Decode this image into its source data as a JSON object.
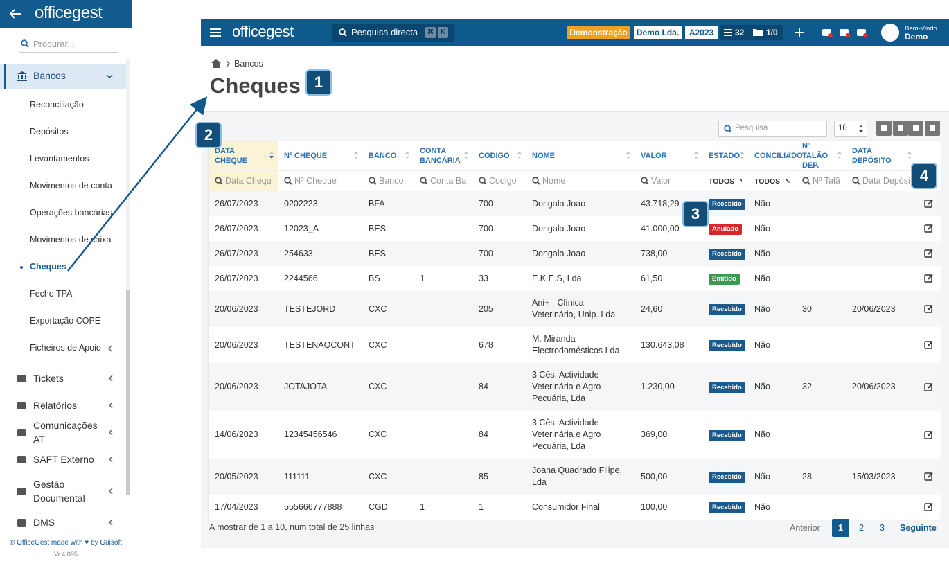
{
  "sidebar": {
    "logo": "officegest",
    "search_placeholder": "Procurar...",
    "menu": [
      {
        "label": "Bancos",
        "active": true,
        "children": [
          {
            "label": "Reconciliação"
          },
          {
            "label": "Depósitos"
          },
          {
            "label": "Levantamentos"
          },
          {
            "label": "Movimentos de conta"
          },
          {
            "label": "Operações bancárias"
          },
          {
            "label": "Movimentos de caixa"
          },
          {
            "label": "Cheques",
            "active": true
          },
          {
            "label": "Fecho TPA"
          },
          {
            "label": "Exportação COPE"
          },
          {
            "label": "Ficheiros de Apoio"
          }
        ]
      },
      {
        "label": "Tickets"
      },
      {
        "label": "Relatórios"
      },
      {
        "label": "Comunicações AT"
      },
      {
        "label": "SAFT Externo"
      },
      {
        "label": "Gestão Documental"
      },
      {
        "label": "DMS"
      }
    ],
    "footer": [
      "© OfficeGest made with ♥ by Guisoft",
      "Vr 4.095"
    ]
  },
  "topbar": {
    "logo": "officegest",
    "search": "Pesquisa directa",
    "shortcut": [
      "⌘",
      "K"
    ],
    "badges": [
      "Demonstração",
      "Demo Lda.",
      "A2023"
    ],
    "counters": [
      "32",
      "1/0"
    ],
    "user": {
      "greeting": "Bem-Vindo",
      "name": "Demo"
    }
  },
  "breadcrumb": [
    "Bancos"
  ],
  "title": "Cheques",
  "callouts": [
    "1",
    "2",
    "3",
    "4"
  ],
  "toolbar": {
    "search_placeholder": "Pesquisa",
    "page_size": "10"
  },
  "table": {
    "columns": [
      "DATA CHEQUE",
      "Nº CHEQUE",
      "BANCO",
      "CONTA BANCÁRIA",
      "CODIGO",
      "NOME",
      "VALOR",
      "ESTADO",
      "CONCILIADO",
      "Nº TALÃO DEP.",
      "DATA DEPÓSITO"
    ],
    "filters": [
      {
        "placeholder": "Data Cheque"
      },
      {
        "placeholder": "Nº Cheque"
      },
      {
        "placeholder": "Banco"
      },
      {
        "placeholder": "Conta Bancária"
      },
      {
        "placeholder": "Codigo"
      },
      {
        "placeholder": "Nome"
      },
      {
        "placeholder": "Valor"
      },
      {
        "select": "TODOS"
      },
      {
        "select": "TODOS"
      },
      {
        "placeholder": "Nº Talão"
      },
      {
        "placeholder": "Data Depósito"
      }
    ],
    "rows": [
      [
        "26/07/2023",
        "0202223",
        "BFA",
        null,
        "700",
        "Dongala Joao",
        "43.718,29",
        {
          "text": "Recebido",
          "color": "#1b5a8c"
        },
        "Não",
        null,
        null
      ],
      [
        "26/07/2023",
        "12023_A",
        "BES",
        null,
        "700",
        "Dongala Joao",
        "41.000,00",
        {
          "text": "Anulado",
          "color": "#d9262a"
        },
        "Não",
        null,
        null
      ],
      [
        "26/07/2023",
        "254633",
        "BES",
        null,
        "700",
        "Dongala Joao",
        "738,00",
        {
          "text": "Recebido",
          "color": "#1b5a8c"
        },
        "Não",
        null,
        null
      ],
      [
        "26/07/2023",
        "2244566",
        "BS",
        "1",
        "33",
        "E.K.E.S, Lda",
        "61,50",
        {
          "text": "Emitido",
          "color": "#3b9a50"
        },
        "Não",
        null,
        null
      ],
      [
        "20/06/2023",
        "TESTEJORD",
        "CXC",
        null,
        "205",
        "Ani+ - Clínica Veterinária, Unip. Lda",
        "24,60",
        {
          "text": "Recebido",
          "color": "#1b5a8c"
        },
        "Não",
        "30",
        "20/06/2023"
      ],
      [
        "20/06/2023",
        "TESTENAOCONT",
        "CXC",
        null,
        "678",
        "M. Miranda - Electrodomésticos Lda",
        "130.643,08",
        {
          "text": "Recebido",
          "color": "#1b5a8c"
        },
        "Não",
        null,
        null
      ],
      [
        "20/06/2023",
        "JOTAJOTA",
        "CXC",
        null,
        "84",
        "3 Cês, Actividade Veterinária e Agro Pecuária, Lda",
        "1.230,00",
        {
          "text": "Recebido",
          "color": "#1b5a8c"
        },
        "Não",
        "32",
        "20/06/2023"
      ],
      [
        "14/06/2023",
        "12345456546",
        "CXC",
        null,
        "84",
        "3 Cês, Actividade Veterinária e Agro Pecuária, Lda",
        "369,00",
        {
          "text": "Recebido",
          "color": "#1b5a8c"
        },
        "Não",
        null,
        null
      ],
      [
        "20/05/2023",
        "111111",
        "CXC",
        null,
        "85",
        "Joana Quadrado Filipe, Lda",
        "500,00",
        {
          "text": "Recebido",
          "color": "#1b5a8c"
        },
        "Não",
        "28",
        "15/03/2023"
      ],
      [
        "17/04/2023",
        "555666777888",
        "CGD",
        "1",
        "1",
        "Consumidor Final",
        "100,00",
        {
          "text": "Recebido",
          "color": "#1b5a8c"
        },
        "Não",
        null,
        null
      ]
    ]
  },
  "footer": {
    "summary": "A mostrar de 1 a 10, num total de 25 linhas",
    "previous": "Anterior",
    "pages": [
      {
        "label": "1",
        "active": true
      },
      {
        "label": "2"
      },
      {
        "label": "3"
      }
    ],
    "next": "Seguinte"
  }
}
